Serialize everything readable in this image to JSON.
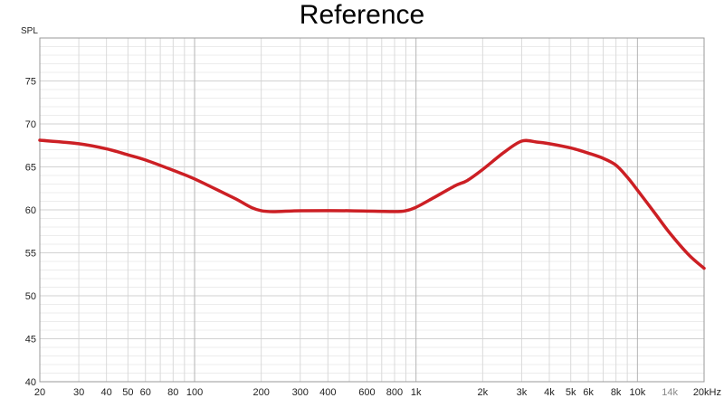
{
  "chart_data": {
    "type": "line",
    "title": "Reference",
    "ylabel": "SPL",
    "xlabel": "",
    "xscale": "log",
    "xlim": [
      20,
      20000
    ],
    "ylim": [
      40,
      80
    ],
    "grid": true,
    "y_ticks": [
      {
        "value": 40,
        "label": "40"
      },
      {
        "value": 45,
        "label": "45"
      },
      {
        "value": 50,
        "label": "50"
      },
      {
        "value": 55,
        "label": "55"
      },
      {
        "value": 60,
        "label": "60"
      },
      {
        "value": 65,
        "label": "65"
      },
      {
        "value": 70,
        "label": "70"
      },
      {
        "value": 75,
        "label": "75"
      }
    ],
    "x_ticks": [
      {
        "value": 20,
        "label": "20"
      },
      {
        "value": 30,
        "label": "30"
      },
      {
        "value": 40,
        "label": "40"
      },
      {
        "value": 50,
        "label": "50"
      },
      {
        "value": 60,
        "label": "60"
      },
      {
        "value": 80,
        "label": "80"
      },
      {
        "value": 100,
        "label": "100"
      },
      {
        "value": 200,
        "label": "200"
      },
      {
        "value": 300,
        "label": "300"
      },
      {
        "value": 400,
        "label": "400"
      },
      {
        "value": 600,
        "label": "600"
      },
      {
        "value": 800,
        "label": "800"
      },
      {
        "value": 1000,
        "label": "1k"
      },
      {
        "value": 2000,
        "label": "2k"
      },
      {
        "value": 3000,
        "label": "3k"
      },
      {
        "value": 4000,
        "label": "4k"
      },
      {
        "value": 5000,
        "label": "5k"
      },
      {
        "value": 6000,
        "label": "6k"
      },
      {
        "value": 8000,
        "label": "8k"
      },
      {
        "value": 10000,
        "label": "10k"
      },
      {
        "value": 14000,
        "label": "14k",
        "muted": true
      },
      {
        "value": 20000,
        "label": "20kHz"
      }
    ],
    "series": [
      {
        "color": "#cc1f24",
        "x": [
          20,
          30,
          40,
          50,
          60,
          80,
          100,
          150,
          200,
          300,
          500,
          800,
          900,
          1000,
          1200,
          1500,
          1700,
          2000,
          2500,
          3000,
          3500,
          4000,
          5000,
          6000,
          7000,
          8000,
          9000,
          10000,
          12000,
          14000,
          17000,
          20000
        ],
        "y": [
          68.1,
          67.7,
          67.1,
          66.4,
          65.8,
          64.6,
          63.6,
          61.4,
          59.9,
          59.9,
          59.9,
          59.8,
          59.9,
          60.3,
          61.4,
          62.8,
          63.4,
          64.7,
          66.7,
          68.0,
          67.9,
          67.7,
          67.2,
          66.6,
          66.0,
          65.2,
          63.8,
          62.3,
          59.6,
          57.3,
          54.8,
          53.2
        ]
      }
    ]
  }
}
